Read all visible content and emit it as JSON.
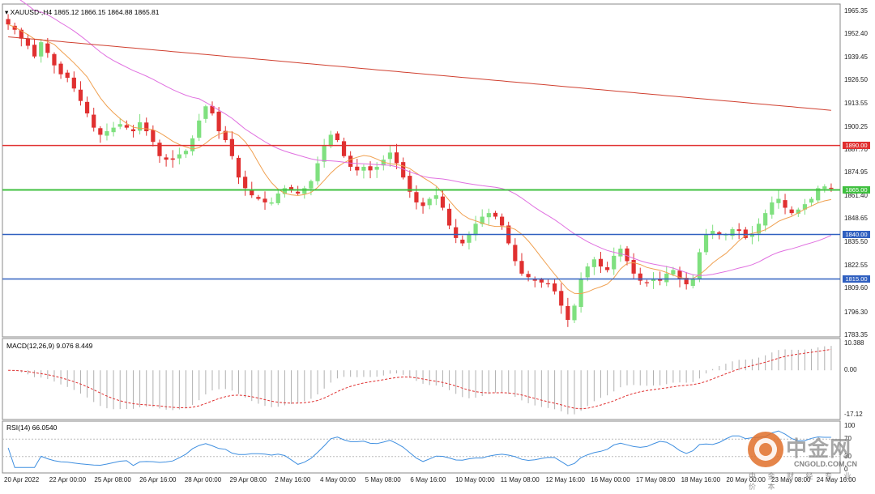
{
  "header": {
    "symbol": "XAUUSD-,H4",
    "ohlc": "1865.12 1866.15 1864.88 1865.81",
    "macd_label": "MACD(12,26,9) 9.076 8.449",
    "rsi_label": "RSI(14) 66.0540"
  },
  "colors": {
    "bull": "#7fe07f",
    "bear": "#e03030",
    "ma_fast": "#f0a050",
    "ma_mid": "#e070e0",
    "ma_slow": "#d04030",
    "rsi_line": "#3f8fe0",
    "level_red": "#e03030",
    "level_green": "#40c040",
    "level_blue": "#3060c0"
  },
  "chart_data": [
    {
      "type": "candlestick",
      "panel": "price",
      "ylim": [
        1783.35,
        1965.35
      ],
      "y_ticks": [
        "1965.35",
        "1952.40",
        "1939.45",
        "1926.50",
        "1913.55",
        "1900.25",
        "1887.70",
        "1874.95",
        "1861.40",
        "1848.65",
        "1835.50",
        "1822.55",
        "1809.60",
        "1796.30",
        "1783.35"
      ],
      "x_ticks": [
        "20 Apr 2022",
        "22 Apr 00:00",
        "25 Apr 08:00",
        "26 Apr 16:00",
        "28 Apr 00:00",
        "29 Apr 08:00",
        "2 May 16:00",
        "4 May 00:00",
        "5 May 08:00",
        "6 May 16:00",
        "10 May 00:00",
        "11 May 08:00",
        "12 May 16:00",
        "16 May 00:00",
        "17 May 08:00",
        "18 May 16:00",
        "20 May 00:00",
        "23 May 08:00",
        "24 May 16:00"
      ],
      "horizontal_levels": [
        {
          "value": 1890.0,
          "label": "1890.00",
          "color": "red"
        },
        {
          "value": 1865.0,
          "label": "1865.00",
          "color": "green"
        },
        {
          "value": 1840.0,
          "label": "1840.00",
          "color": "blue"
        },
        {
          "value": 1815.0,
          "label": "1815.00",
          "color": "blue"
        }
      ],
      "close_path": [
        1958,
        1955,
        1950,
        1946,
        1940,
        1948,
        1942,
        1935,
        1930,
        1928,
        1922,
        1915,
        1908,
        1900,
        1896,
        1898,
        1900,
        1902,
        1900,
        1898,
        1903,
        1898,
        1892,
        1884,
        1882,
        1882,
        1885,
        1887,
        1894,
        1904,
        1912,
        1908,
        1898,
        1893,
        1884,
        1872,
        1866,
        1862,
        1860,
        1858,
        1858,
        1863,
        1866,
        1865,
        1863,
        1866,
        1870,
        1880,
        1890,
        1896,
        1893,
        1884,
        1878,
        1876,
        1878,
        1876,
        1878,
        1882,
        1886,
        1880,
        1872,
        1864,
        1858,
        1856,
        1860,
        1862,
        1855,
        1845,
        1838,
        1835,
        1840,
        1846,
        1850,
        1852,
        1850,
        1845,
        1835,
        1825,
        1818,
        1816,
        1814,
        1813,
        1812,
        1808,
        1800,
        1792,
        1800,
        1815,
        1822,
        1826,
        1822,
        1820,
        1828,
        1832,
        1825,
        1818,
        1814,
        1813,
        1815,
        1814,
        1818,
        1820,
        1815,
        1812,
        1815,
        1830,
        1840,
        1842,
        1840,
        1840,
        1843,
        1842,
        1838,
        1840,
        1846,
        1852,
        1858,
        1860,
        1855,
        1852,
        1854,
        1857,
        1860,
        1866,
        1867,
        1866
      ]
    },
    {
      "type": "bar+line",
      "panel": "macd",
      "ylim": [
        -17.12,
        10.388
      ],
      "y_ticks": [
        "10.388",
        "0.00",
        "-17.12"
      ]
    },
    {
      "type": "line",
      "panel": "rsi",
      "ylim": [
        0,
        100
      ],
      "y_ticks": [
        "100",
        "70",
        "30",
        "0"
      ]
    }
  ],
  "watermark": {
    "brand": "中金网",
    "site": "CNGOLD.COM.CN",
    "tagline": "中 金 财 经 专 业 价 本"
  }
}
